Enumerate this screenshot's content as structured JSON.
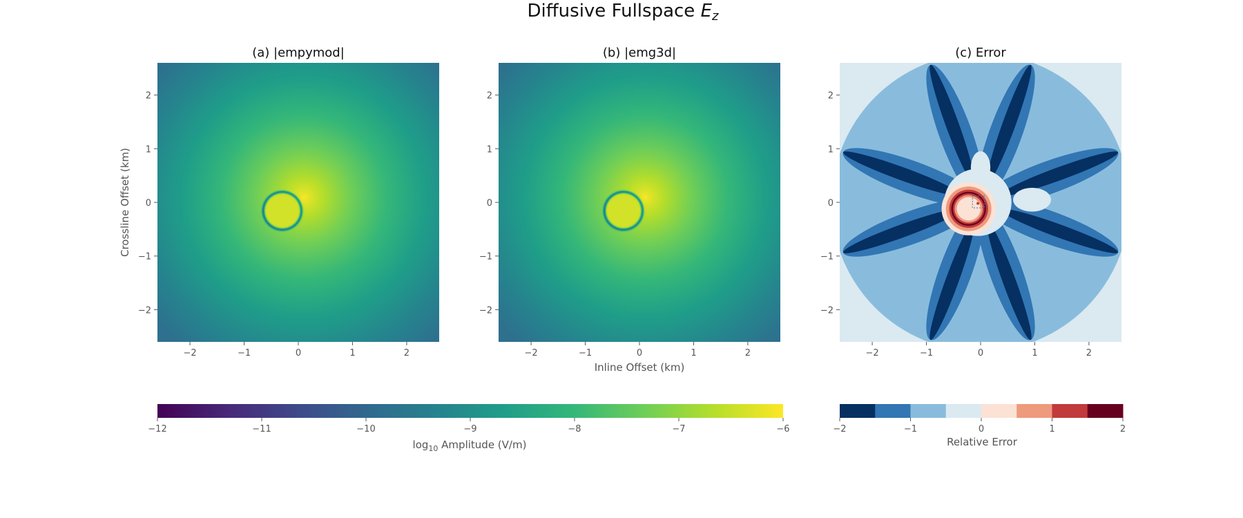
{
  "figure": {
    "title": "Diffusive Fullspace",
    "title_math": "E",
    "title_sub": "z"
  },
  "colors": {
    "viridis": [
      "#440154",
      "#482878",
      "#3e4989",
      "#31688e",
      "#26828e",
      "#1f9e89",
      "#35b779",
      "#6ece58",
      "#b5de2b",
      "#fde725"
    ],
    "rdbu_levels": [
      "#053061",
      "#3276b4",
      "#89bcdc",
      "#dbe9f1",
      "#fbe2d5",
      "#ee9a7d",
      "#c13a3c",
      "#67001f"
    ],
    "background": "#ffffff",
    "tick_color": "#555555"
  },
  "chart_data": [
    {
      "id": "a",
      "type": "heatmap",
      "title": "(a) |empymod|",
      "xlabel": "",
      "ylabel": "Crossline Offset (km)",
      "xlim": [
        -2.6,
        2.6
      ],
      "ylim": [
        -2.6,
        2.6
      ],
      "xticks": [
        -2,
        -1,
        0,
        1,
        2
      ],
      "yticks": [
        -2,
        -1,
        0,
        1,
        2
      ],
      "xtick_labels": [
        "−2",
        "−1",
        "0",
        "1",
        "2"
      ],
      "ytick_labels": [
        "−2",
        "−1",
        "0",
        "1",
        "2"
      ],
      "grid": false,
      "colormap": "viridis",
      "clim": [
        -12,
        -6
      ],
      "field": {
        "peak_center_km": [
          0.1,
          0.1
        ],
        "peak_value": -6,
        "edge_value": -9.8,
        "null_circle_center_km": [
          -0.3,
          -0.15
        ],
        "null_circle_radius_km": 0.35
      }
    },
    {
      "id": "b",
      "type": "heatmap",
      "title": "(b) |emg3d|",
      "xlabel": "Inline Offset (km)",
      "ylabel": "",
      "xlim": [
        -2.6,
        2.6
      ],
      "ylim": [
        -2.6,
        2.6
      ],
      "xticks": [
        -2,
        -1,
        0,
        1,
        2
      ],
      "yticks": [
        -2,
        -1,
        0,
        1,
        2
      ],
      "xtick_labels": [
        "−2",
        "−1",
        "0",
        "1",
        "2"
      ],
      "ytick_labels": [
        "−2",
        "−1",
        "0",
        "1",
        "2"
      ],
      "grid": false,
      "colormap": "viridis",
      "clim": [
        -12,
        -6
      ],
      "field": {
        "peak_center_km": [
          0.1,
          0.1
        ],
        "peak_value": -6,
        "edge_value": -9.8,
        "null_circle_center_km": [
          -0.3,
          -0.15
        ],
        "null_circle_radius_km": 0.35
      }
    },
    {
      "id": "c",
      "type": "heatmap",
      "title": "(c) Error",
      "xlabel": "",
      "ylabel": "",
      "xlim": [
        -2.6,
        2.6
      ],
      "ylim": [
        -2.6,
        2.6
      ],
      "xticks": [
        -2,
        -1,
        0,
        1,
        2
      ],
      "yticks": [
        -2,
        -1,
        0,
        1,
        2
      ],
      "xtick_labels": [
        "−2",
        "−1",
        "0",
        "1",
        "2"
      ],
      "ytick_labels": [
        "−2",
        "−1",
        "0",
        "1",
        "2"
      ],
      "grid": false,
      "colormap": "RdBu_r",
      "clim": [
        -2,
        2
      ],
      "levels": [
        -2,
        -1.5,
        -1,
        -0.5,
        0,
        0.5,
        1,
        1.5,
        2
      ]
    }
  ],
  "colorbars": [
    {
      "id": "amplitude",
      "label_prefix": "log",
      "label_sub": "10",
      "label_suffix": " Amplitude (V/m)",
      "range": [
        -12,
        -6
      ],
      "ticks": [
        -12,
        -11,
        -10,
        -9,
        -8,
        -7,
        -6
      ],
      "tick_labels": [
        "−12",
        "−11",
        "−10",
        "−9",
        "−8",
        "−7",
        "−6"
      ],
      "colormap": "viridis"
    },
    {
      "id": "error",
      "label": "Relative Error",
      "range": [
        -2,
        2
      ],
      "ticks": [
        -2,
        -1,
        0,
        1,
        2
      ],
      "tick_labels": [
        "−2",
        "−1",
        "0",
        "1",
        "2"
      ],
      "colormap": "RdBu_r",
      "discrete": true
    }
  ]
}
